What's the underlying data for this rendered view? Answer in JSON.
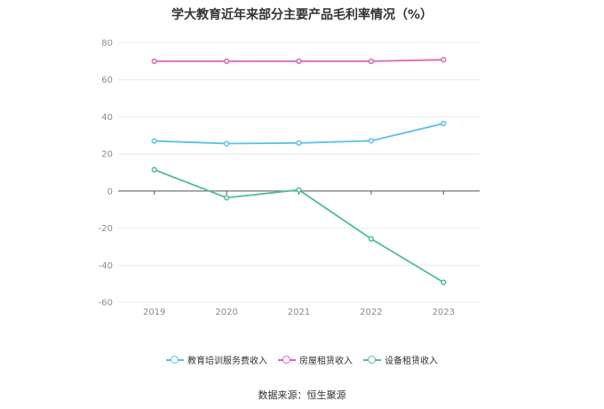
{
  "chart_data": {
    "type": "line",
    "title": "学大教育近年来部分主要产品毛利率情况（%）",
    "categories": [
      "2019",
      "2020",
      "2021",
      "2022",
      "2023"
    ],
    "ylim": [
      -60,
      80
    ],
    "yticks": [
      80,
      60,
      40,
      20,
      0,
      -20,
      -40,
      -60
    ],
    "grid": true,
    "legend_position": "bottom",
    "series": [
      {
        "name": "教育培训服务费收入",
        "color": "#5bc0eb",
        "values": [
          27.0,
          25.6,
          25.9,
          27.1,
          36.4
        ]
      },
      {
        "name": "房屋租赁收入",
        "color": "#d766b9",
        "values": [
          70.0,
          70.0,
          70.0,
          70.0,
          70.8
        ]
      },
      {
        "name": "设备租赁收入",
        "color": "#4dbd9c",
        "values": [
          11.5,
          -3.6,
          0.6,
          -25.8,
          -49.2
        ]
      }
    ]
  },
  "source": "数据来源：恒生聚源"
}
